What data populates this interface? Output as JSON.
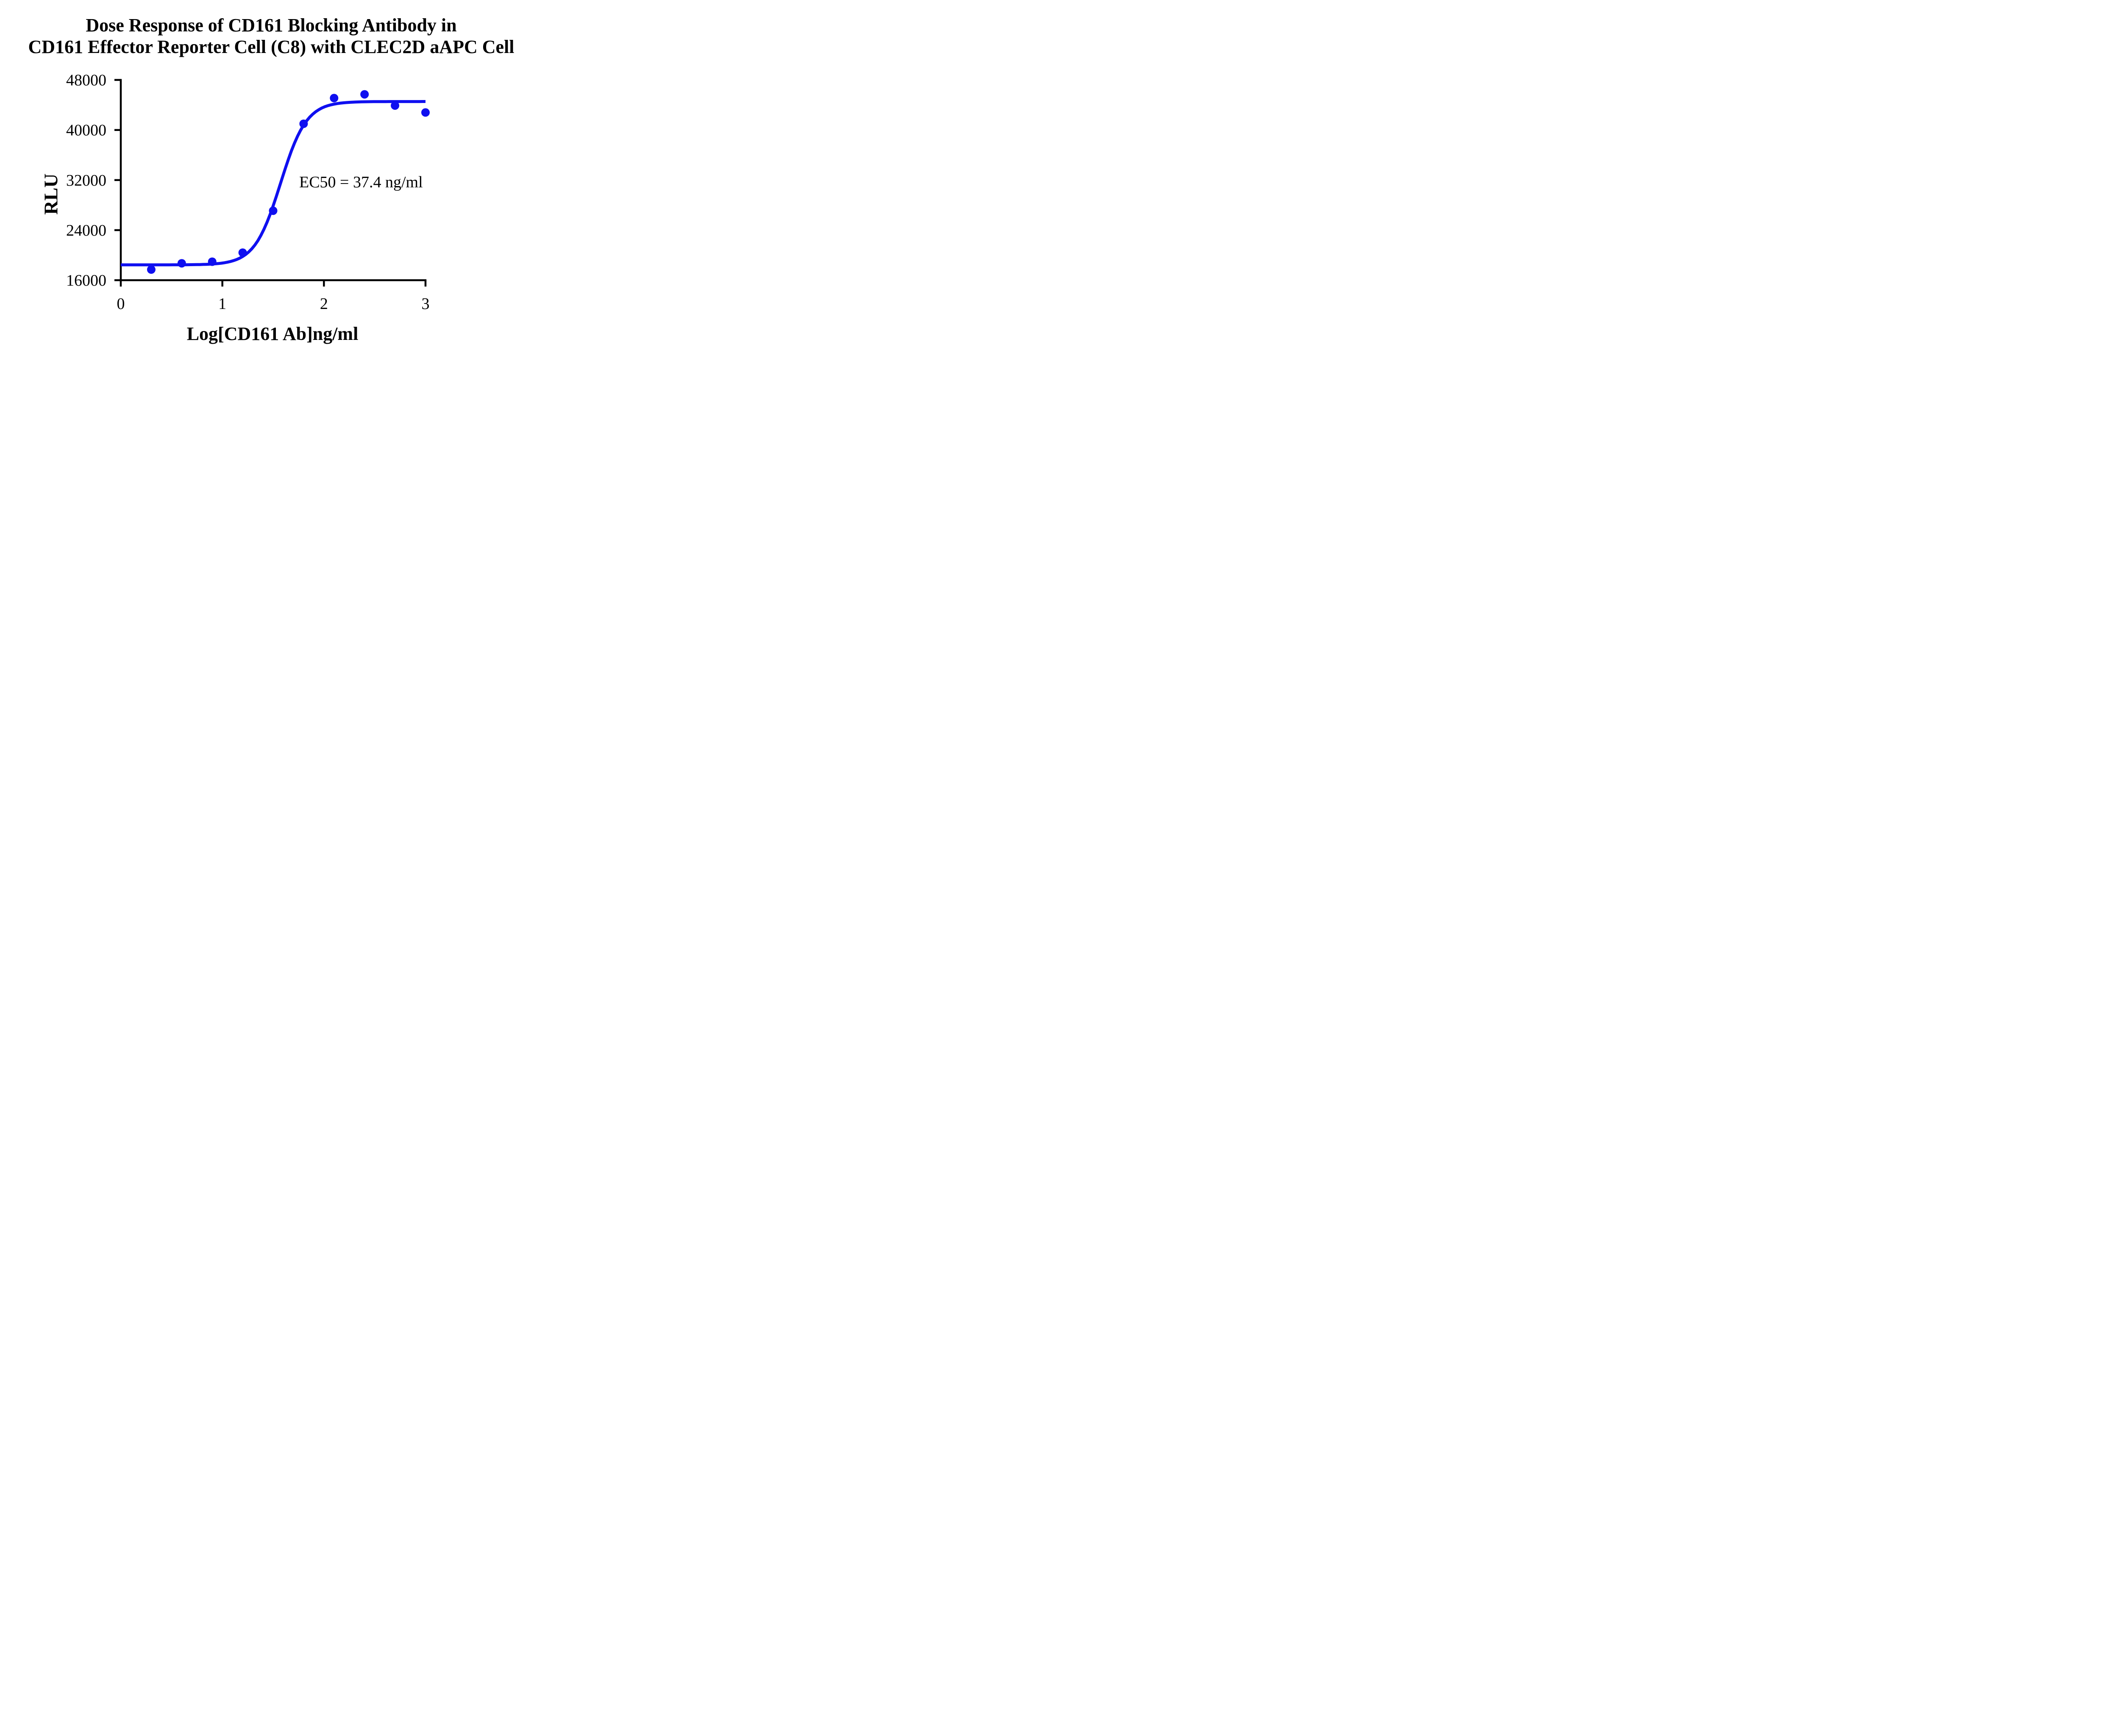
{
  "chart_data": {
    "type": "scatter",
    "title_lines": [
      "Dose Response of CD161 Blocking Antibody in",
      "CD161 Effector Reporter Cell (C8) with CLEC2D aAPC Cell"
    ],
    "xlabel": "Log[CD161 Ab]ng/ml",
    "ylabel": "RLU",
    "xlim": [
      0,
      3
    ],
    "ylim": [
      16000,
      48000
    ],
    "x_ticks": [
      0,
      1,
      2,
      3
    ],
    "y_ticks": [
      16000,
      24000,
      32000,
      40000,
      48000
    ],
    "grid": false,
    "legend": null,
    "points": {
      "x": [
        0.3,
        0.6,
        0.9,
        1.2,
        1.5,
        1.8,
        2.1,
        2.4,
        2.7,
        3.0
      ],
      "y": [
        17700,
        18700,
        18950,
        20400,
        27100,
        41000,
        45100,
        45700,
        43900,
        42800
      ]
    },
    "fit_curve": {
      "model": "four-parameter-logistic",
      "bottom": 18450,
      "top": 44550,
      "log_ec50": 1.573,
      "hill_slope": 3.4
    },
    "annotation": "EC50 = 37.4 ng/ml",
    "ec50_ng_ml": 37.4,
    "colors": {
      "series": "#0F0FF0",
      "axis": "#000000",
      "background": "#FFFFFF"
    }
  }
}
